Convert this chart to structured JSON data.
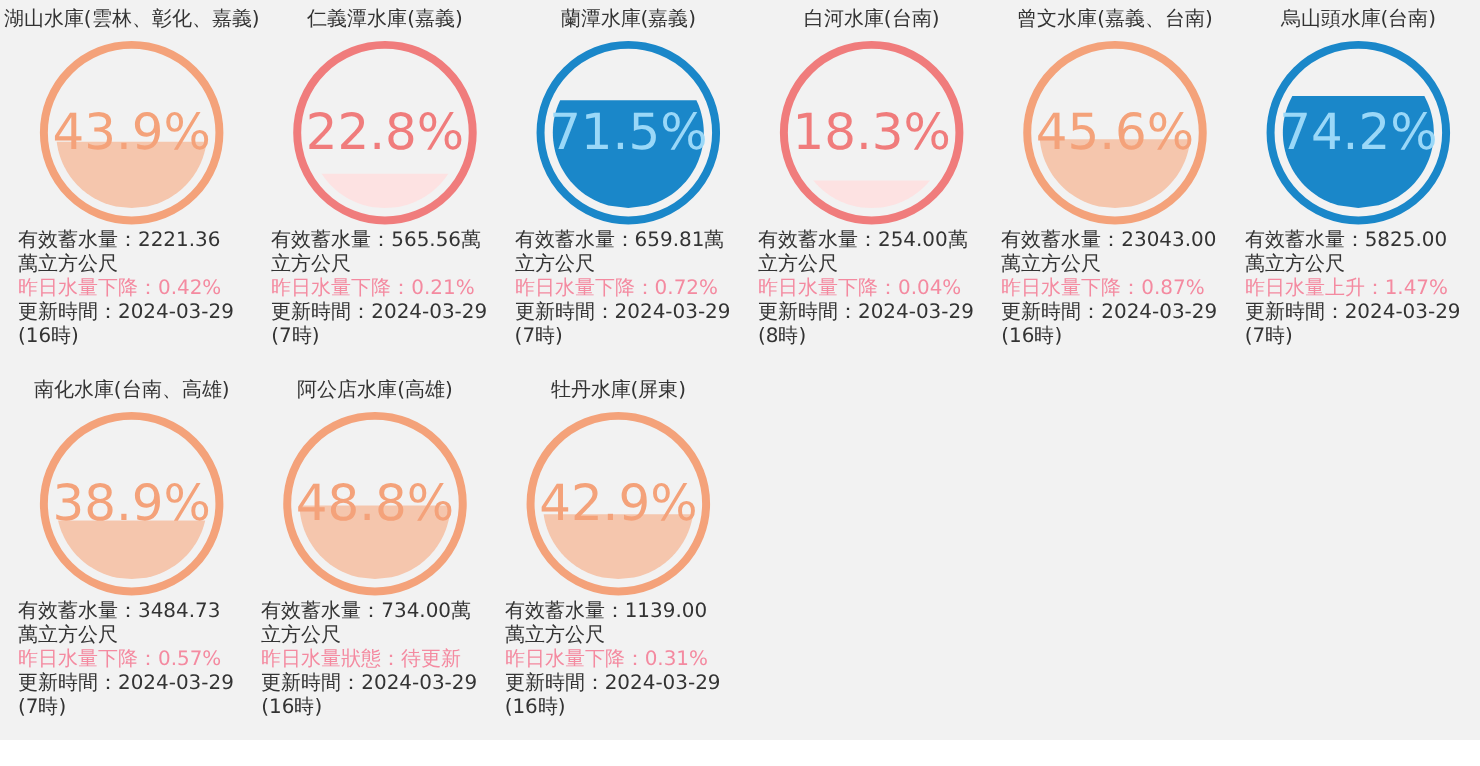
{
  "chart_data": [
    {
      "type": "other",
      "title": "湖山水庫(雲林、彰化、嘉義)",
      "values": [
        43.9
      ],
      "value_labels": [
        "43.9%"
      ],
      "color": "#f4a27a",
      "colors": [
        "#f5c6ad"
      ],
      "annotations": [
        "有效蓄水量：2221.36萬立方公尺",
        "昨日水量下降：0.42%",
        "更新時間：2024-03-29(16時)"
      ]
    },
    {
      "type": "other",
      "title": "仁義潭水庫(嘉義)",
      "values": [
        22.8
      ],
      "value_labels": [
        "22.8%"
      ],
      "color": "#f07c7c",
      "colors": [
        "#fde2e2"
      ],
      "annotations": [
        "有效蓄水量：565.56萬立方公尺",
        "昨日水量下降：0.21%",
        "更新時間：2024-03-29(7時)"
      ]
    },
    {
      "type": "other",
      "title": "蘭潭水庫(嘉義)",
      "values": [
        71.5
      ],
      "value_labels": [
        "71.5%"
      ],
      "color": "#1a87c9",
      "colors": [
        "#1a87c9"
      ],
      "annotations": [
        "有效蓄水量：659.81萬立方公尺",
        "昨日水量下降：0.72%",
        "更新時間：2024-03-29(7時)"
      ]
    },
    {
      "type": "other",
      "title": "白河水庫(台南)",
      "values": [
        18.3
      ],
      "value_labels": [
        "18.3%"
      ],
      "color": "#f07c7c",
      "colors": [
        "#fde2e2"
      ],
      "annotations": [
        "有效蓄水量：254.00萬立方公尺",
        "昨日水量下降：0.04%",
        "更新時間：2024-03-29(8時)"
      ]
    },
    {
      "type": "other",
      "title": "曾文水庫(嘉義、台南)",
      "values": [
        45.6
      ],
      "value_labels": [
        "45.6%"
      ],
      "color": "#f4a27a",
      "colors": [
        "#f5c6ad"
      ],
      "annotations": [
        "有效蓄水量：23043.00萬立方公尺",
        "昨日水量下降：0.87%",
        "更新時間：2024-03-29(16時)"
      ]
    },
    {
      "type": "other",
      "title": "烏山頭水庫(台南)",
      "values": [
        74.2
      ],
      "value_labels": [
        "74.2%"
      ],
      "color": "#1a87c9",
      "colors": [
        "#1a87c9"
      ],
      "annotations": [
        "有效蓄水量：5825.00萬立方公尺",
        "昨日水量上升：1.47%",
        "更新時間：2024-03-29(7時)"
      ]
    },
    {
      "type": "other",
      "title": "南化水庫(台南、高雄)",
      "values": [
        38.9
      ],
      "value_labels": [
        "38.9%"
      ],
      "color": "#f4a27a",
      "colors": [
        "#f5c6ad"
      ],
      "annotations": [
        "有效蓄水量：3484.73萬立方公尺",
        "昨日水量下降：0.57%",
        "更新時間：2024-03-29(7時)"
      ]
    },
    {
      "type": "other",
      "title": "阿公店水庫(高雄)",
      "values": [
        48.8
      ],
      "value_labels": [
        "48.8%"
      ],
      "color": "#f4a27a",
      "colors": [
        "#f5c6ad"
      ],
      "annotations": [
        "有效蓄水量：734.00萬立方公尺",
        "昨日水量狀態：待更新",
        "更新時間：2024-03-29(16時)"
      ]
    },
    {
      "type": "other",
      "title": "牡丹水庫(屏東)",
      "values": [
        42.9
      ],
      "value_labels": [
        "42.9%"
      ],
      "color": "#f4a27a",
      "colors": [
        "#f5c6ad"
      ],
      "annotations": [
        "有效蓄水量：1139.00萬立方公尺",
        "昨日水量下降：0.31%",
        "更新時間：2024-03-29(16時)"
      ]
    }
  ]
}
